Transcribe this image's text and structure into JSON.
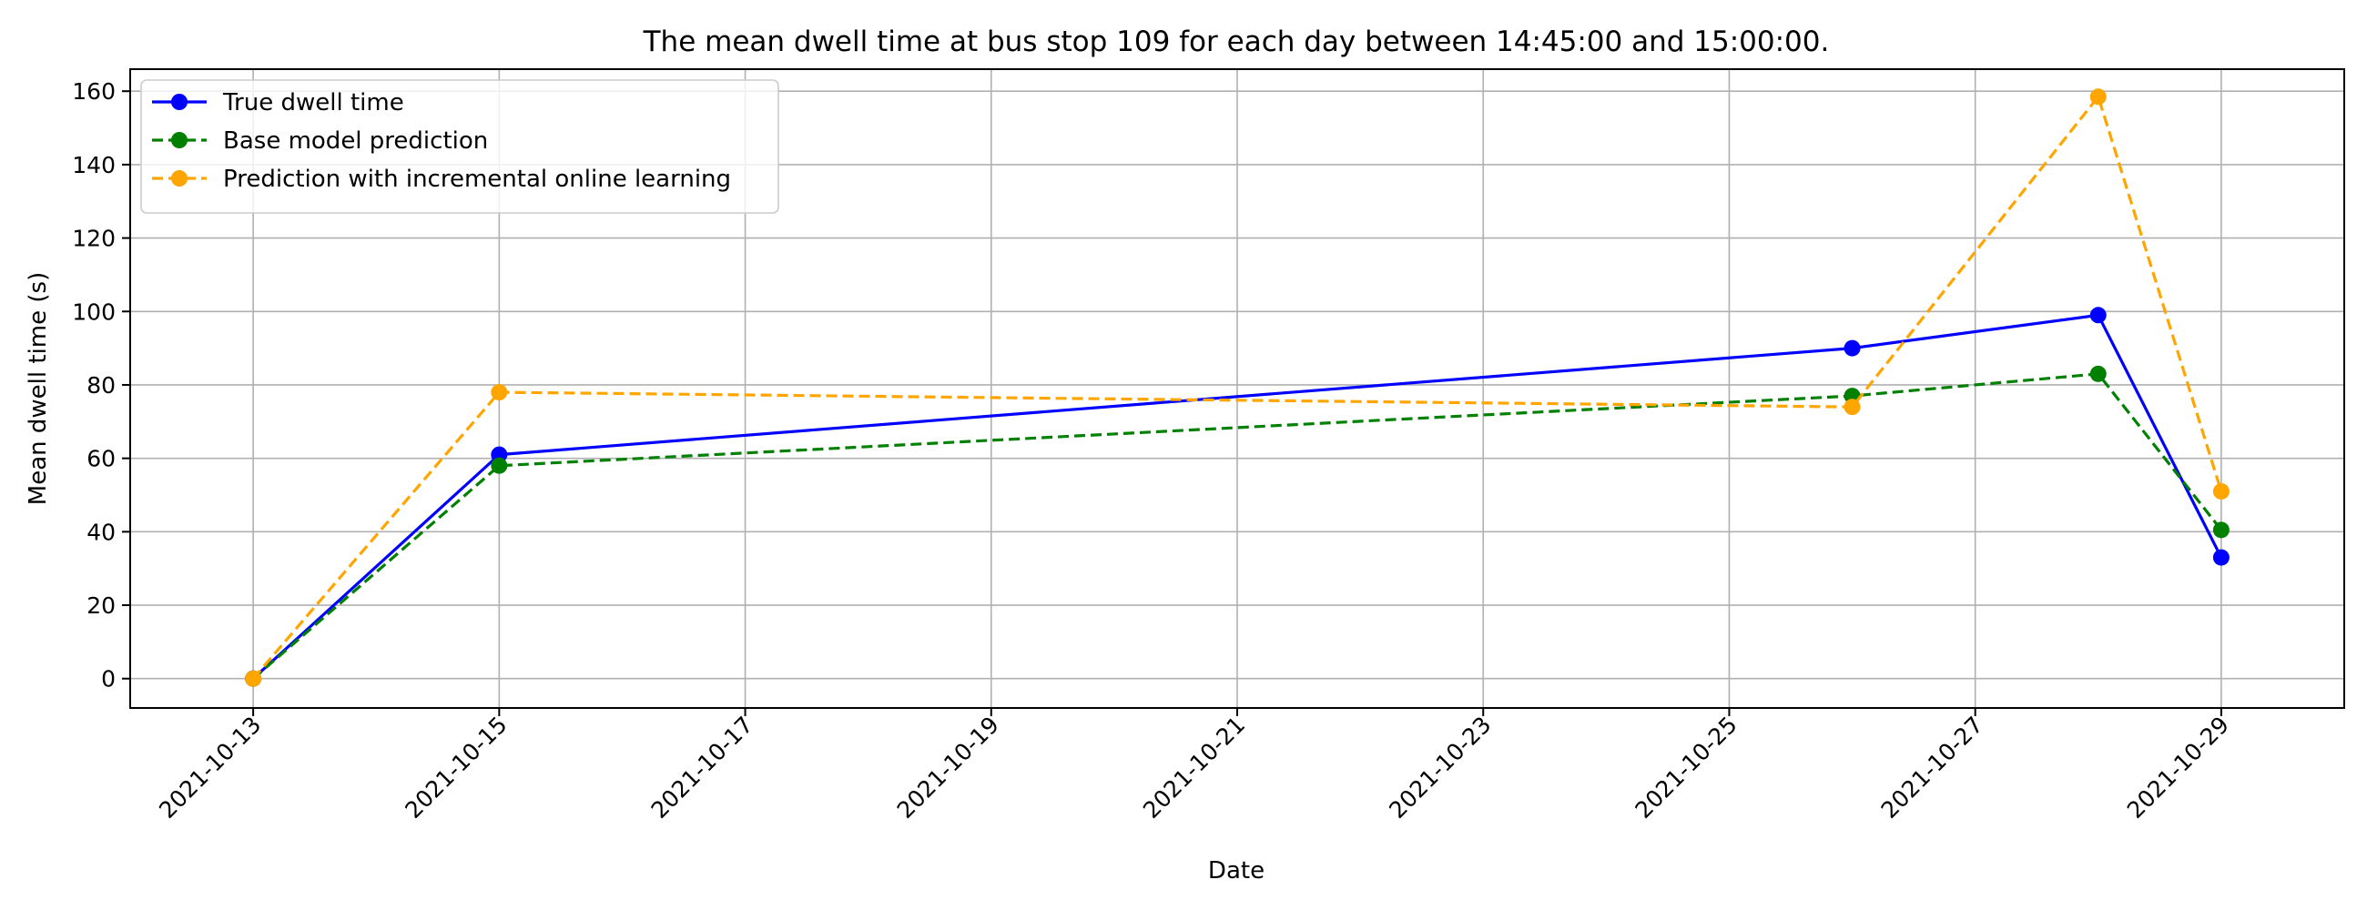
{
  "chart_data": {
    "type": "line",
    "title": "The mean dwell time at bus stop 109 for each day between 14:45:00 and 15:00:00.",
    "xlabel": "Date",
    "ylabel": "Mean dwell time (s)",
    "x_ticks": [
      "2021-10-13",
      "2021-10-15",
      "2021-10-17",
      "2021-10-19",
      "2021-10-21",
      "2021-10-23",
      "2021-10-25",
      "2021-10-27",
      "2021-10-29"
    ],
    "y_ticks": [
      0,
      20,
      40,
      60,
      80,
      100,
      120,
      140,
      160
    ],
    "xlim": [
      "2021-10-12",
      "2021-10-30"
    ],
    "ylim": [
      -8,
      166
    ],
    "grid": true,
    "legend_position": "top-left",
    "x": [
      "2021-10-13",
      "2021-10-15",
      "2021-10-26",
      "2021-10-28",
      "2021-10-29"
    ],
    "series": [
      {
        "name": "True dwell time",
        "values": [
          0,
          61,
          90,
          99,
          33
        ],
        "color": "#0000ff",
        "style": "solid"
      },
      {
        "name": "Base model prediction",
        "values": [
          0,
          58,
          77,
          83,
          40.5
        ],
        "color": "#008000",
        "style": "dashed"
      },
      {
        "name": "Prediction with incremental online learning",
        "values": [
          0,
          78,
          74,
          158.5,
          51
        ],
        "color": "#ffa500",
        "style": "dashed"
      }
    ]
  }
}
